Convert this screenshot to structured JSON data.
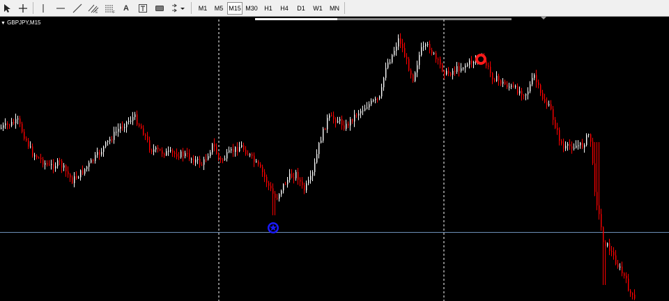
{
  "toolbar": {
    "tools": [
      {
        "name": "cursor-icon"
      },
      {
        "name": "crosshair-icon"
      },
      {
        "name": "vertical-line-icon"
      },
      {
        "name": "horizontal-line-icon"
      },
      {
        "name": "trendline-icon"
      },
      {
        "name": "equidistant-channel-icon"
      },
      {
        "name": "fibonacci-icon"
      },
      {
        "name": "text-icon",
        "label": "A"
      },
      {
        "name": "text-label-icon"
      },
      {
        "name": "rectangle-icon"
      },
      {
        "name": "arrows-icon"
      }
    ],
    "timeframes": [
      "M1",
      "M5",
      "M15",
      "M30",
      "H1",
      "H4",
      "D1",
      "W1",
      "MN"
    ],
    "active_timeframe": "M15"
  },
  "chart": {
    "symbol_label": "GBPJPY,M15",
    "background": "#000000",
    "bull_color": "#ffffff",
    "bear_color": "#ff0000",
    "grid_color": "#ffffff",
    "hline_color": "#6e8fb8",
    "markers": [
      {
        "type": "buy-star",
        "color": "#1b1bff"
      },
      {
        "type": "sell-circle",
        "color": "#ff1a1a"
      }
    ]
  }
}
